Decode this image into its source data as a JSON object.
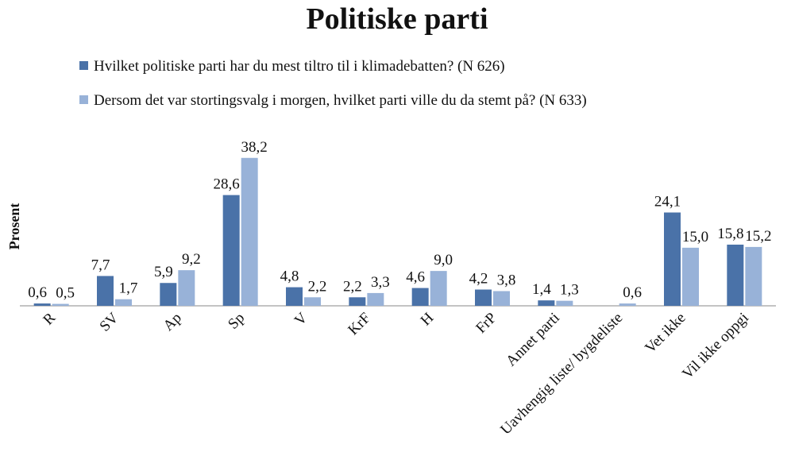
{
  "chart_data": {
    "type": "bar",
    "title": "Politiske parti",
    "y_label": "Prosent",
    "categories": [
      "R",
      "SV",
      "Ap",
      "Sp",
      "V",
      "KrF",
      "H",
      "FrP",
      "Annet parti",
      "Uavhengig liste/ bygdeliste",
      "Vet ikke",
      "Vil ikke oppgi"
    ],
    "series": [
      {
        "name": "Hvilket politiske parti har du mest tiltro til i klimadebatten? (N 626)",
        "color": "#4a72a8",
        "values": [
          0.6,
          7.7,
          5.9,
          28.6,
          4.8,
          2.2,
          4.6,
          4.2,
          1.4,
          null,
          24.1,
          15.8
        ],
        "value_labels": [
          "0,6",
          "7,7",
          "5,9",
          "28,6",
          "4,8",
          "2,2",
          "4,6",
          "4,2",
          "1,4",
          null,
          "24,1",
          "15,8"
        ]
      },
      {
        "name": "Dersom det var stortingsvalg i morgen, hvilket parti ville du da stemt på? (N 633)",
        "color": "#98b2d8",
        "values": [
          0.5,
          1.7,
          9.2,
          38.2,
          2.2,
          3.3,
          9.0,
          3.8,
          1.3,
          0.6,
          15.0,
          15.2
        ],
        "value_labels": [
          "0,5",
          "1,7",
          "9,2",
          "38,2",
          "2,2",
          "3,3",
          "9,0",
          "3,8",
          "1,3",
          "0,6",
          "15,0",
          "15,2"
        ]
      }
    ],
    "ylim": [
      0,
      40
    ]
  }
}
